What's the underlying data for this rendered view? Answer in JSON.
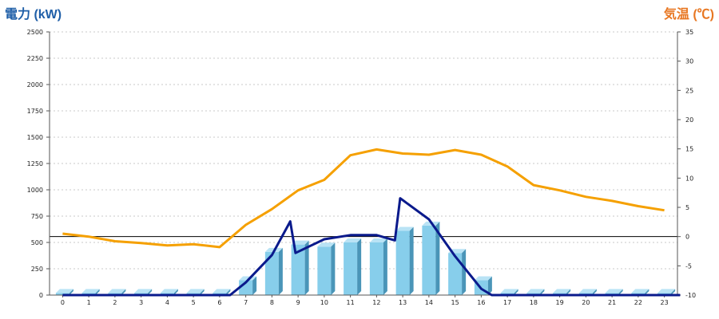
{
  "chart_data": {
    "type": "bar+line",
    "left_title": "電力 (kW)",
    "right_title": "気温 (℃)",
    "left_title_color": "#1f5fa8",
    "right_title_color": "#e87722",
    "x_categories": [
      "0",
      "1",
      "2",
      "3",
      "4",
      "5",
      "6",
      "7",
      "8",
      "9",
      "10",
      "11",
      "12",
      "13",
      "14",
      "15",
      "16",
      "17",
      "18",
      "19",
      "20",
      "21",
      "22",
      "23"
    ],
    "y_left": {
      "min": 0,
      "max": 2500,
      "ticks": [
        "0",
        "250",
        "500",
        "750",
        "1000",
        "1250",
        "1500",
        "1750",
        "2000",
        "2250",
        "2500"
      ]
    },
    "y_right": {
      "min": -10,
      "max": 35,
      "ticks": [
        "-10",
        "-5",
        "0",
        "5",
        "10",
        "15",
        "20",
        "25",
        "30",
        "35"
      ]
    },
    "grid": true,
    "zero_line_right": 0,
    "bar_series": {
      "axis": "left",
      "color": "#87ceeb",
      "values": [
        20,
        20,
        20,
        20,
        20,
        20,
        20,
        140,
        410,
        480,
        460,
        500,
        500,
        610,
        660,
        400,
        140,
        20,
        20,
        20,
        20,
        20,
        20,
        20
      ]
    },
    "power_line": {
      "axis": "left",
      "color": "#0a1a8c",
      "points": [
        [
          0,
          0
        ],
        [
          6.4,
          0
        ],
        [
          7,
          120
        ],
        [
          8,
          380
        ],
        [
          8.7,
          700
        ],
        [
          8.9,
          400
        ],
        [
          10,
          530
        ],
        [
          11,
          570
        ],
        [
          12,
          570
        ],
        [
          12.7,
          520
        ],
        [
          12.9,
          920
        ],
        [
          14,
          720
        ],
        [
          15,
          370
        ],
        [
          16,
          60
        ],
        [
          16.4,
          0
        ],
        [
          23.6,
          0
        ]
      ]
    },
    "temperature_line": {
      "axis": "right",
      "color": "#f5a000",
      "values": [
        0.5,
        0,
        -0.8,
        -1.1,
        -1.5,
        -1.3,
        -1.8,
        2,
        4.7,
        7.9,
        9.7,
        13.9,
        14.9,
        14.2,
        14,
        14.8,
        14,
        12,
        8.8,
        7.9,
        6.8,
        6.1,
        5.2,
        4.5
      ]
    }
  }
}
